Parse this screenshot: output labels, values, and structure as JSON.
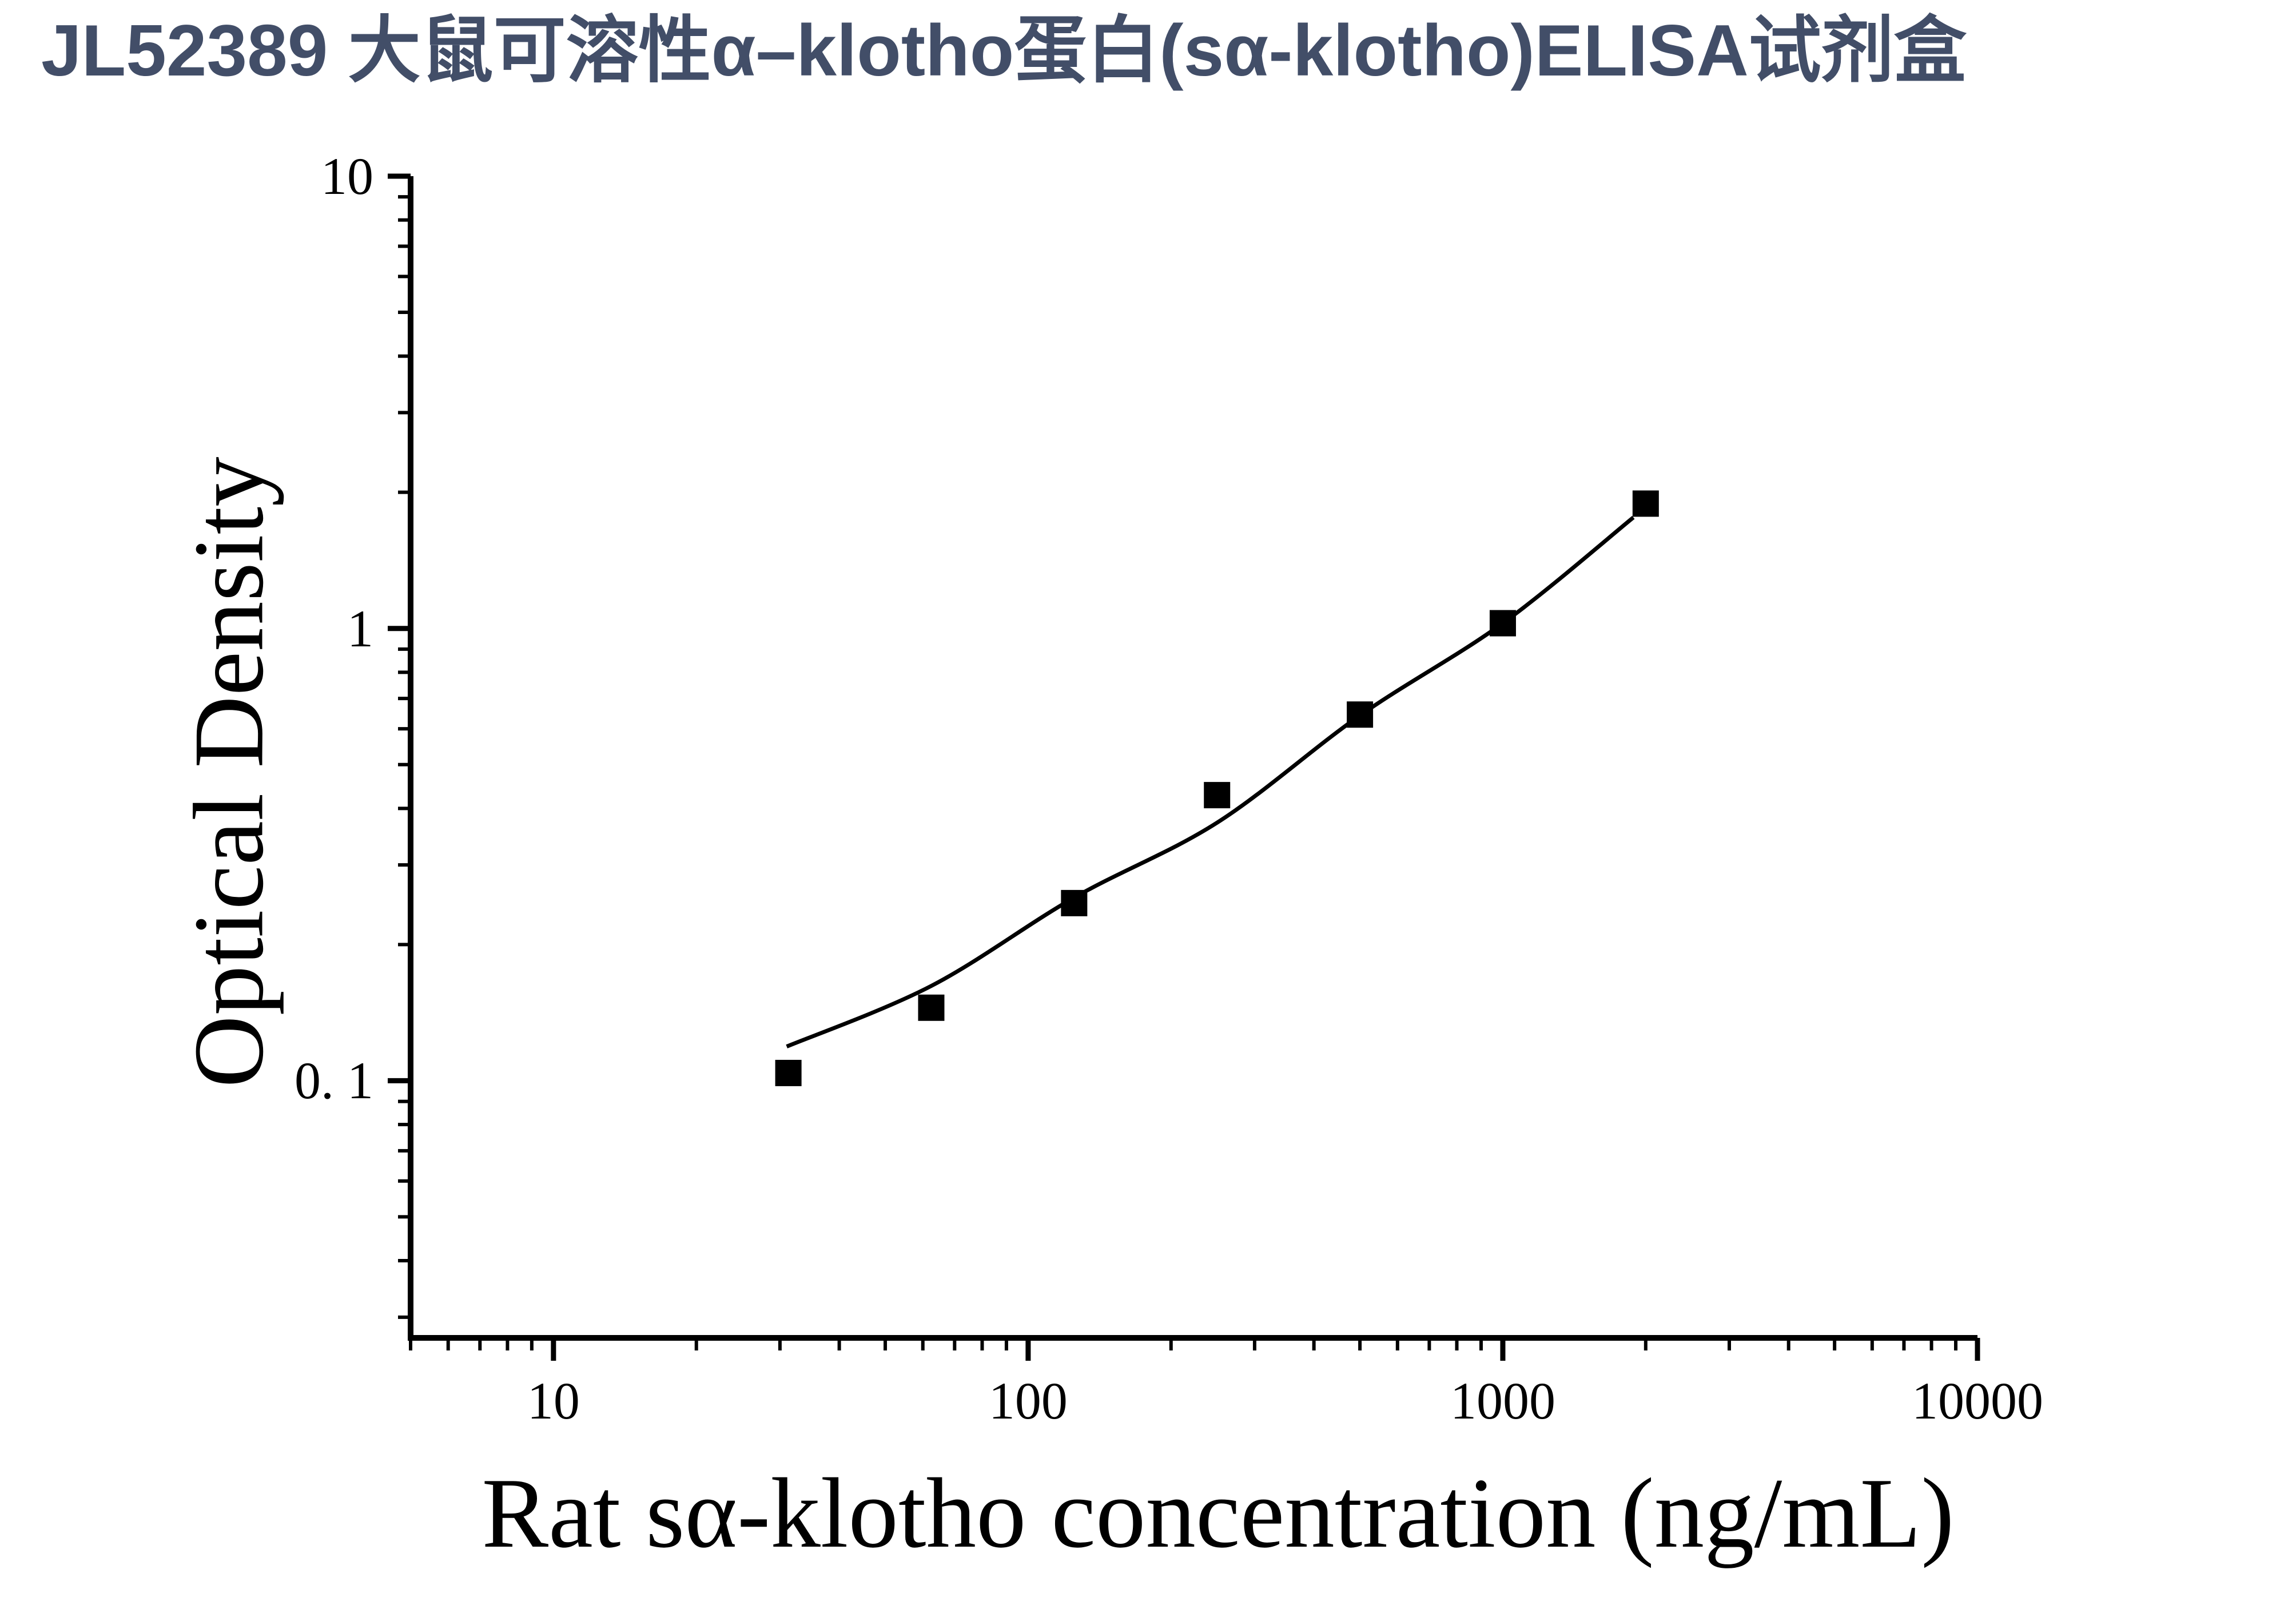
{
  "title": {
    "text": "JL52389 大鼠可溶性α–klotho蛋白(sα-klotho)ELISA试剂盒",
    "color": "#424E68"
  },
  "chart_data": {
    "type": "scatter",
    "title": "",
    "xlabel": "Rat sα-klotho concentration (ng/mL)",
    "ylabel": "Optical Density",
    "x_scale": "log",
    "y_scale": "log",
    "x_range": [
      5,
      10000
    ],
    "y_range": [
      0.027,
      10
    ],
    "grid": "off",
    "legend": "none",
    "series": [
      {
        "name": "standard-curve-points",
        "marker": "filled-square",
        "x": [
          31.25,
          62.5,
          125,
          250,
          500,
          1000,
          2000
        ],
        "y": [
          0.104,
          0.145,
          0.247,
          0.428,
          0.645,
          1.027,
          1.888
        ]
      }
    ],
    "fit_curve": {
      "name": "4PL-fit-line",
      "x": [
        31,
        62.5,
        125,
        250,
        500,
        1000,
        1884
      ],
      "y": [
        0.119,
        0.162,
        0.254,
        0.372,
        0.642,
        1.027,
        1.76
      ]
    },
    "x_tick_labels": [
      {
        "value": 10,
        "label": "10"
      },
      {
        "value": 100,
        "label": "100"
      },
      {
        "value": 1000,
        "label": "1000"
      },
      {
        "value": 10000,
        "label": "10000"
      }
    ],
    "y_tick_labels": [
      {
        "value": 10,
        "label": "10"
      },
      {
        "value": 1,
        "label": "1"
      },
      {
        "value": 0.1,
        "label": "0. 1"
      }
    ],
    "colors": {
      "axis": "#000000",
      "marker": "#000000",
      "curve": "#000000",
      "background": "#ffffff"
    }
  }
}
